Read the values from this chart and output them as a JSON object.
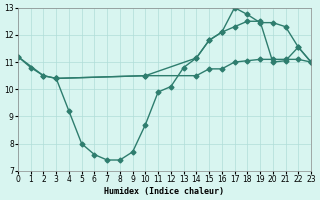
{
  "line1_x": [
    0,
    1,
    2,
    3,
    4,
    5,
    6,
    7,
    8,
    9,
    10,
    11,
    12,
    13,
    14,
    15,
    16,
    17,
    18,
    19,
    20,
    21,
    22,
    23
  ],
  "line1_y": [
    11.2,
    10.8,
    10.5,
    10.4,
    9.2,
    8.0,
    7.6,
    7.4,
    7.4,
    7.7,
    8.7,
    9.9,
    10.1,
    10.8,
    11.15,
    11.8,
    12.1,
    12.3,
    12.5,
    12.5,
    11.0,
    11.05,
    11.55,
    11.0
  ],
  "line2_x": [
    0,
    2,
    3,
    10,
    14,
    15,
    16,
    17,
    18,
    19,
    20,
    21,
    22,
    23
  ],
  "line2_y": [
    11.2,
    10.5,
    10.4,
    10.5,
    10.5,
    10.75,
    10.75,
    11.0,
    11.05,
    11.1,
    11.1,
    11.1,
    11.1,
    11.0
  ],
  "line3_x": [
    3,
    10,
    14,
    15,
    16,
    17,
    18,
    19,
    20,
    21,
    22,
    23
  ],
  "line3_y": [
    10.4,
    10.5,
    11.15,
    11.8,
    12.1,
    13.0,
    12.75,
    12.45,
    12.45,
    12.3,
    11.55,
    11.0
  ],
  "color": "#2e7d6e",
  "bg_color": "#d8f5f0",
  "grid_color": "#b0ddd8",
  "xlabel": "Humidex (Indice chaleur)",
  "xlim": [
    0,
    23
  ],
  "ylim": [
    7,
    13
  ],
  "xticks": [
    0,
    1,
    2,
    3,
    4,
    5,
    6,
    7,
    8,
    9,
    10,
    11,
    12,
    13,
    14,
    15,
    16,
    17,
    18,
    19,
    20,
    21,
    22,
    23
  ],
  "yticks": [
    7,
    8,
    9,
    10,
    11,
    12,
    13
  ],
  "marker": "D",
  "markersize": 2.5,
  "linewidth": 1.0
}
